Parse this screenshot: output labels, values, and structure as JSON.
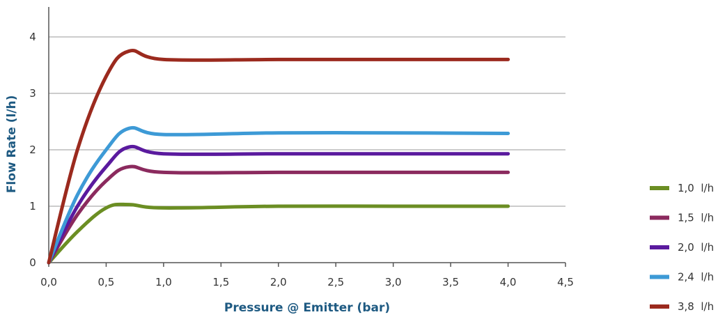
{
  "chart_data": {
    "type": "line",
    "title": "",
    "xlabel": "Pressure @ Emitter (bar)",
    "ylabel": "Flow Rate (l/h)",
    "xlim": [
      0,
      4.5
    ],
    "ylim": [
      0,
      4.3
    ],
    "grid": "horizontal",
    "legend_position": "right",
    "x_tick_labels": [
      "0,0",
      "0,5",
      "1,0",
      "1,5",
      "2,0",
      "2,5",
      "3,0",
      "3,5",
      "4,0",
      "4,5"
    ],
    "y_tick_labels": [
      "0",
      "1",
      "2",
      "3",
      "4"
    ],
    "x": [
      0,
      0.25,
      0.5,
      0.7,
      1.0,
      2.0,
      3.0,
      4.0
    ],
    "series": [
      {
        "name": "1,0  l/h",
        "color": "#6b8e23",
        "values": [
          0,
          0.55,
          0.97,
          1.03,
          0.97,
          1.0,
          1.0,
          1.0
        ]
      },
      {
        "name": "1,5  l/h",
        "color": "#8b2a5e",
        "values": [
          0,
          0.85,
          1.45,
          1.7,
          1.6,
          1.6,
          1.6,
          1.6
        ]
      },
      {
        "name": "2,0  l/h",
        "color": "#5a1a9e",
        "values": [
          0,
          1.0,
          1.7,
          2.05,
          1.93,
          1.93,
          1.93,
          1.93
        ]
      },
      {
        "name": "2,4  l/h",
        "color": "#3d9ad6",
        "values": [
          0,
          1.2,
          2.0,
          2.38,
          2.27,
          2.3,
          2.3,
          2.29
        ]
      },
      {
        "name": "3,8  l/h",
        "color": "#9b2a1e",
        "values": [
          0,
          2.0,
          3.3,
          3.75,
          3.6,
          3.6,
          3.6,
          3.6
        ]
      }
    ]
  }
}
